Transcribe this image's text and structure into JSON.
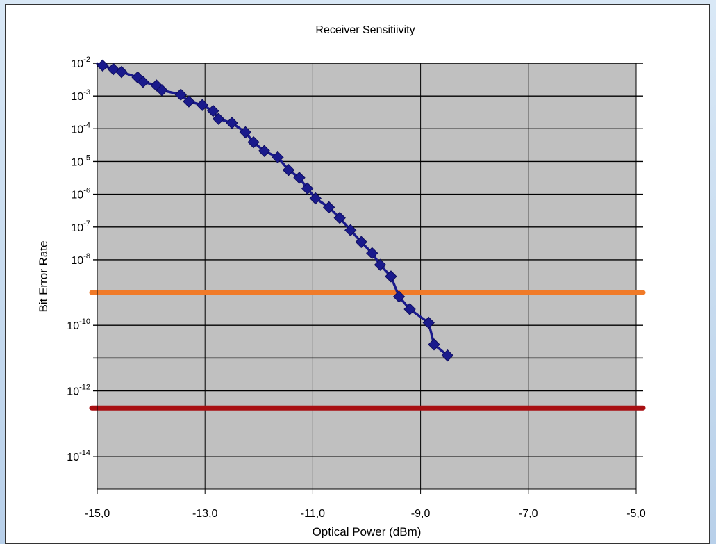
{
  "chart_data": {
    "type": "line",
    "title": "Receiver Sensitiivity",
    "xlabel": "Optical Power (dBm)",
    "ylabel": "Bit Error Rate",
    "x_scale": "linear",
    "y_scale": "log",
    "xlim": [
      -15.0,
      -5.0
    ],
    "ylim": [
      1e-15,
      0.01
    ],
    "x_ticks": [
      {
        "value": -15,
        "label": "-15,0"
      },
      {
        "value": -13,
        "label": "-13,0"
      },
      {
        "value": -11,
        "label": "-11,0"
      },
      {
        "value": -9,
        "label": "-9,0"
      },
      {
        "value": -7,
        "label": "-7,0"
      },
      {
        "value": -5,
        "label": "-5,0"
      }
    ],
    "y_ticks": [
      {
        "value": 0.01,
        "base": "10",
        "exp": "-2"
      },
      {
        "value": 0.001,
        "base": "10",
        "exp": "-3"
      },
      {
        "value": 0.0001,
        "base": "10",
        "exp": "-4"
      },
      {
        "value": 1e-05,
        "base": "10",
        "exp": "-5"
      },
      {
        "value": 1e-06,
        "base": "10",
        "exp": "-6"
      },
      {
        "value": 1e-07,
        "base": "10",
        "exp": "-7"
      },
      {
        "value": 1e-08,
        "base": "10",
        "exp": "-8"
      },
      {
        "value": 1e-10,
        "base": "10",
        "exp": "-10"
      },
      {
        "value": 1e-12,
        "base": "10",
        "exp": "-12"
      },
      {
        "value": 1e-14,
        "base": "10",
        "exp": "-14"
      }
    ],
    "y_gridlines": [
      0.01,
      0.001,
      0.0001,
      1e-05,
      1e-06,
      1e-07,
      1e-08,
      1e-10,
      1e-11,
      1e-12,
      1e-14
    ],
    "grid": true,
    "series": [
      {
        "color": "#1a1a8c",
        "marker": "diamond",
        "points": [
          {
            "x": -15.0,
            "y": 0.0098
          },
          {
            "x": -14.9,
            "y": 0.0085
          },
          {
            "x": -14.7,
            "y": 0.0066
          },
          {
            "x": -14.55,
            "y": 0.0054
          },
          {
            "x": -14.25,
            "y": 0.0037
          },
          {
            "x": -14.15,
            "y": 0.0027
          },
          {
            "x": -13.9,
            "y": 0.0021
          },
          {
            "x": -13.8,
            "y": 0.0015
          },
          {
            "x": -13.45,
            "y": 0.0011
          },
          {
            "x": -13.3,
            "y": 0.00068
          },
          {
            "x": -13.05,
            "y": 0.00053
          },
          {
            "x": -12.85,
            "y": 0.00035
          },
          {
            "x": -12.75,
            "y": 0.0002
          },
          {
            "x": -12.5,
            "y": 0.00015
          },
          {
            "x": -12.25,
            "y": 7.8e-05
          },
          {
            "x": -12.1,
            "y": 3.9e-05
          },
          {
            "x": -11.9,
            "y": 2.1e-05
          },
          {
            "x": -11.65,
            "y": 1.35e-05
          },
          {
            "x": -11.45,
            "y": 5.5e-06
          },
          {
            "x": -11.25,
            "y": 3.2e-06
          },
          {
            "x": -11.1,
            "y": 1.5e-06
          },
          {
            "x": -10.95,
            "y": 7.5e-07
          },
          {
            "x": -10.7,
            "y": 4e-07
          },
          {
            "x": -10.5,
            "y": 1.9e-07
          },
          {
            "x": -10.3,
            "y": 8e-08
          },
          {
            "x": -10.1,
            "y": 3.5e-08
          },
          {
            "x": -9.9,
            "y": 1.6e-08
          },
          {
            "x": -9.75,
            "y": 7e-09
          },
          {
            "x": -9.55,
            "y": 3.1e-09
          },
          {
            "x": -9.4,
            "y": 7.5e-10
          },
          {
            "x": -9.2,
            "y": 3.1e-10
          },
          {
            "x": -8.85,
            "y": 1.2e-10
          },
          {
            "x": -8.75,
            "y": 2.6e-11
          },
          {
            "x": -8.5,
            "y": 1.2e-11
          }
        ]
      }
    ],
    "reference_lines": [
      {
        "y": 1e-09,
        "color": "#f07a28"
      },
      {
        "y": 3e-13,
        "color": "#a80f12"
      }
    ]
  }
}
